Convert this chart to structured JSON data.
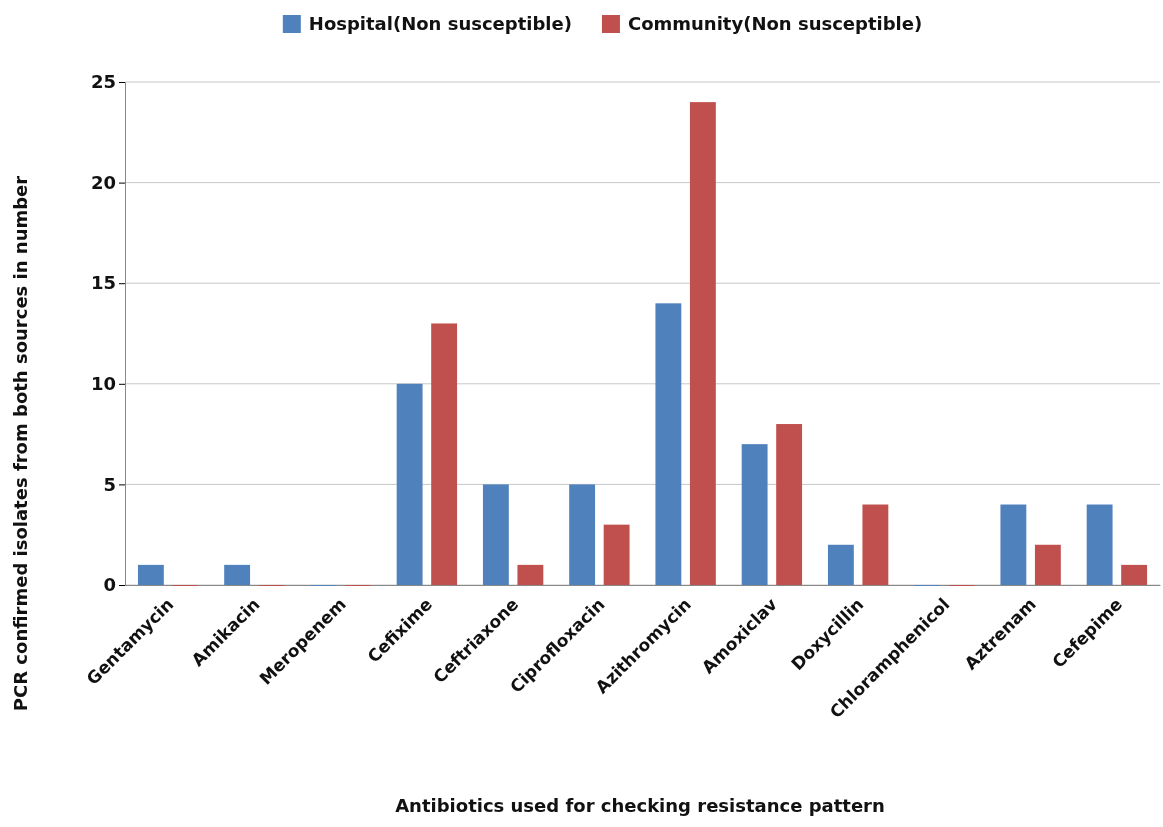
{
  "chart_data": {
    "type": "bar",
    "xlabel": "Antibiotics used for checking resistance pattern",
    "ylabel": "PCR confirmed isolates from both sources in number",
    "categories": [
      "Gentamycin",
      "Amikacin",
      "Meropenem",
      "Cefixime",
      "Ceftriaxone",
      "Ciprofloxacin",
      "Azithromycin",
      "Amoxiclav",
      "Doxycillin",
      "Chloramphenicol",
      "Aztrenam",
      "Cefepime"
    ],
    "series": [
      {
        "name": "Hospital(Non susceptible)",
        "color": "#4f81bd",
        "values": [
          1,
          1,
          0,
          10,
          5,
          5,
          14,
          7,
          2,
          0,
          4,
          4
        ]
      },
      {
        "name": "Community(Non susceptible)",
        "color": "#c0504d",
        "values": [
          0,
          0,
          0,
          13,
          1,
          3,
          24,
          8,
          4,
          0,
          2,
          1
        ]
      }
    ],
    "ylim": [
      0,
      25
    ],
    "yticks": [
      0,
      5,
      10,
      15,
      20,
      25
    ],
    "grid": "y",
    "legend": "top"
  }
}
